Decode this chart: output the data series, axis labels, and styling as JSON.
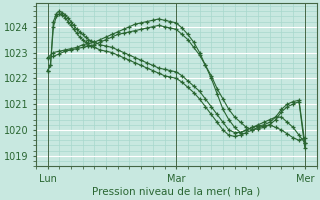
{
  "bg_color": "#c8e8e0",
  "plot_bg_color": "#c8e8e0",
  "grid_major_color": "#ffffff",
  "grid_minor_color": "#a8d8cc",
  "line_color": "#2a6632",
  "ylabel_ticks": [
    1019,
    1020,
    1021,
    1022,
    1023,
    1024
  ],
  "ylim": [
    1018.6,
    1024.9
  ],
  "xlim": [
    0,
    96
  ],
  "xlabel": "Pression niveau de la mer( hPa )",
  "xtick_positions": [
    4,
    48,
    92
  ],
  "xtick_labels": [
    "Lun",
    "Mar",
    "Mer"
  ],
  "vlines": [
    4,
    48,
    92
  ],
  "series": [
    [
      4,
      1022.8,
      6,
      1022.85,
      8,
      1022.95,
      10,
      1023.05,
      12,
      1023.1,
      14,
      1023.15,
      16,
      1023.2,
      18,
      1023.25,
      20,
      1023.3,
      22,
      1023.4,
      24,
      1023.5,
      26,
      1023.6,
      28,
      1023.7,
      30,
      1023.75,
      32,
      1023.8,
      34,
      1023.85,
      36,
      1023.9,
      38,
      1023.95,
      40,
      1024.0,
      42,
      1024.05,
      44,
      1024.0,
      46,
      1023.95,
      48,
      1023.9,
      50,
      1023.7,
      52,
      1023.5,
      54,
      1023.2,
      56,
      1022.9,
      58,
      1022.5,
      60,
      1022.1,
      62,
      1021.6,
      64,
      1021.2,
      66,
      1020.8,
      68,
      1020.5,
      70,
      1020.3,
      72,
      1020.1,
      74,
      1020.0,
      76,
      1020.05,
      78,
      1020.1,
      80,
      1020.2,
      82,
      1020.1,
      84,
      1020.0,
      86,
      1019.85,
      88,
      1019.7,
      90,
      1019.6,
      92,
      1019.7
    ],
    [
      4,
      1022.8,
      6,
      1023.0,
      8,
      1023.05,
      10,
      1023.1,
      12,
      1023.15,
      14,
      1023.2,
      16,
      1023.3,
      18,
      1023.35,
      20,
      1023.4,
      22,
      1023.5,
      24,
      1023.6,
      26,
      1023.7,
      28,
      1023.8,
      30,
      1023.9,
      32,
      1024.0,
      34,
      1024.1,
      36,
      1024.15,
      38,
      1024.2,
      40,
      1024.25,
      42,
      1024.3,
      44,
      1024.25,
      46,
      1024.2,
      48,
      1024.15,
      50,
      1023.95,
      52,
      1023.7,
      54,
      1023.4,
      56,
      1023.0,
      58,
      1022.5,
      60,
      1022.0,
      62,
      1021.4,
      64,
      1020.8,
      66,
      1020.4,
      68,
      1020.1,
      70,
      1019.9,
      72,
      1020.0,
      74,
      1020.1,
      76,
      1020.2,
      78,
      1020.3,
      80,
      1020.4,
      82,
      1020.5,
      84,
      1020.5,
      86,
      1020.3,
      88,
      1020.1,
      90,
      1019.8,
      92,
      1019.5
    ],
    [
      4,
      1022.3,
      5,
      1022.5,
      6,
      1024.2,
      7,
      1024.5,
      8,
      1024.6,
      9,
      1024.55,
      10,
      1024.45,
      11,
      1024.35,
      12,
      1024.2,
      13,
      1024.05,
      14,
      1023.9,
      15,
      1023.8,
      16,
      1023.7,
      17,
      1023.6,
      18,
      1023.5,
      19,
      1023.45,
      20,
      1023.4,
      22,
      1023.3,
      24,
      1023.25,
      26,
      1023.2,
      28,
      1023.1,
      30,
      1023.0,
      32,
      1022.9,
      34,
      1022.8,
      36,
      1022.7,
      38,
      1022.6,
      40,
      1022.5,
      42,
      1022.4,
      44,
      1022.35,
      46,
      1022.3,
      48,
      1022.25,
      50,
      1022.1,
      52,
      1021.9,
      54,
      1021.7,
      56,
      1021.5,
      58,
      1021.2,
      60,
      1020.9,
      62,
      1020.6,
      64,
      1020.3,
      66,
      1020.0,
      68,
      1019.9,
      70,
      1019.9,
      72,
      1020.0,
      74,
      1020.1,
      76,
      1020.15,
      78,
      1020.2,
      80,
      1020.3,
      82,
      1020.5,
      84,
      1020.8,
      86,
      1021.0,
      88,
      1021.1,
      90,
      1021.15,
      92,
      1019.5
    ],
    [
      4,
      1022.3,
      5,
      1022.5,
      6,
      1024.0,
      7,
      1024.4,
      8,
      1024.5,
      9,
      1024.45,
      10,
      1024.35,
      11,
      1024.2,
      12,
      1024.05,
      13,
      1023.9,
      14,
      1023.75,
      15,
      1023.6,
      16,
      1023.5,
      17,
      1023.4,
      18,
      1023.3,
      19,
      1023.25,
      20,
      1023.2,
      22,
      1023.1,
      24,
      1023.05,
      26,
      1023.0,
      28,
      1022.9,
      30,
      1022.8,
      32,
      1022.7,
      34,
      1022.6,
      36,
      1022.5,
      38,
      1022.4,
      40,
      1022.3,
      42,
      1022.2,
      44,
      1022.1,
      46,
      1022.05,
      48,
      1022.0,
      50,
      1021.85,
      52,
      1021.65,
      54,
      1021.45,
      56,
      1021.2,
      58,
      1020.9,
      60,
      1020.6,
      62,
      1020.3,
      64,
      1020.0,
      66,
      1019.8,
      68,
      1019.75,
      70,
      1019.8,
      72,
      1019.9,
      74,
      1020.0,
      76,
      1020.1,
      78,
      1020.15,
      80,
      1020.2,
      82,
      1020.4,
      84,
      1020.7,
      86,
      1020.9,
      88,
      1021.0,
      90,
      1021.1,
      92,
      1019.3
    ]
  ]
}
